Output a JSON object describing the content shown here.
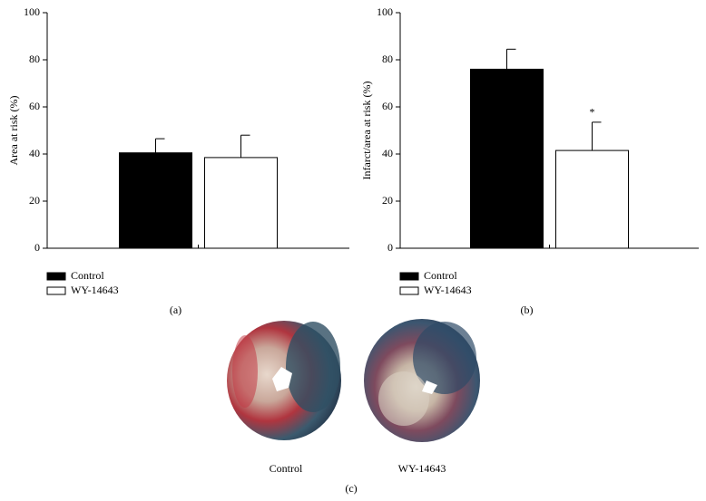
{
  "chart_data": [
    {
      "type": "bar",
      "y_label": "Area at risk (%)",
      "caption": "(a)",
      "categories": [
        null
      ],
      "series": [
        {
          "name": "Control",
          "color": "#000000",
          "values": [
            40.5
          ],
          "errors": [
            6
          ]
        },
        {
          "name": "WY-14643",
          "color": "#ffffff",
          "values": [
            38.5
          ],
          "errors": [
            9.5
          ]
        }
      ],
      "ylim": [
        0,
        100
      ],
      "yticks": [
        0,
        20,
        40,
        60,
        80,
        100
      ],
      "grid": false
    },
    {
      "type": "bar",
      "y_label": "Infarct/area at risk (%)",
      "caption": "(b)",
      "categories": [
        null
      ],
      "series": [
        {
          "name": "Control",
          "color": "#000000",
          "values": [
            76
          ],
          "errors": [
            8.5
          ]
        },
        {
          "name": "WY-14643",
          "color": "#ffffff",
          "values": [
            41.5
          ],
          "errors": [
            12
          ]
        }
      ],
      "annotation": "*",
      "ylim": [
        0,
        100
      ],
      "yticks": [
        0,
        20,
        40,
        60,
        80,
        100
      ],
      "grid": false
    }
  ],
  "panel_c": {
    "labels": [
      "Control",
      "WY-14643"
    ],
    "caption": "(c)"
  }
}
